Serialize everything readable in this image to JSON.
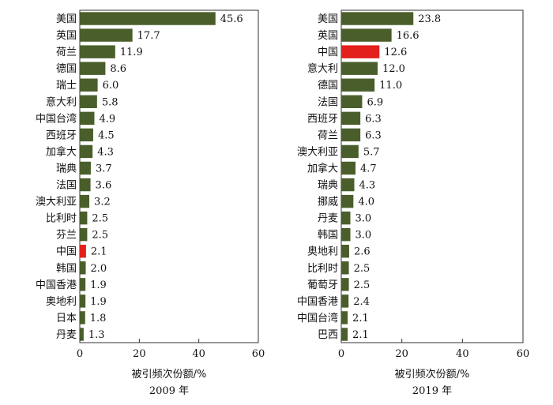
{
  "chart_data": [
    {
      "type": "bar",
      "orientation": "horizontal",
      "categories": [
        "美国",
        "英国",
        "荷兰",
        "德国",
        "瑞士",
        "意大利",
        "中国台湾",
        "西班牙",
        "加拿大",
        "瑞典",
        "法国",
        "澳大利亚",
        "比利时",
        "芬兰",
        "中国",
        "韩国",
        "中国香港",
        "奥地利",
        "日本",
        "丹麦"
      ],
      "values": [
        45.6,
        17.7,
        11.9,
        8.6,
        6.0,
        5.8,
        4.9,
        4.5,
        4.3,
        3.7,
        3.6,
        3.2,
        2.5,
        2.5,
        2.1,
        2.0,
        1.9,
        1.9,
        1.8,
        1.3
      ],
      "value_labels": [
        "45.6",
        "17.7",
        "11.9",
        "8.6",
        "6.0",
        "5.8",
        "4.9",
        "4.5",
        "4.3",
        "3.7",
        "3.6",
        "3.2",
        "2.5",
        "2.5",
        "2.1",
        "2.0",
        "1.9",
        "1.9",
        "1.8",
        "1.3"
      ],
      "highlight": "中国",
      "xlabel": "被引频次份额/%",
      "year_label": "2009 年",
      "xlim": [
        0,
        60
      ],
      "xticks": [
        "0",
        "20",
        "40",
        "60"
      ],
      "grid": false
    },
    {
      "type": "bar",
      "orientation": "horizontal",
      "categories": [
        "美国",
        "英国",
        "中国",
        "意大利",
        "德国",
        "法国",
        "西班牙",
        "荷兰",
        "澳大利亚",
        "加拿大",
        "瑞典",
        "挪威",
        "丹麦",
        "韩国",
        "奥地利",
        "比利时",
        "葡萄牙",
        "中国香港",
        "中国台湾",
        "巴西"
      ],
      "values": [
        23.8,
        16.6,
        12.6,
        12.0,
        11.0,
        6.9,
        6.3,
        6.3,
        5.7,
        4.7,
        4.3,
        4.0,
        3.0,
        3.0,
        2.6,
        2.5,
        2.5,
        2.4,
        2.1,
        2.1
      ],
      "value_labels": [
        "23.8",
        "16.6",
        "12.6",
        "12.0",
        "11.0",
        "6.9",
        "6.3",
        "6.3",
        "5.7",
        "4.7",
        "4.3",
        "4.0",
        "3.0",
        "3.0",
        "2.6",
        "2.5",
        "2.5",
        "2.4",
        "2.1",
        "2.1"
      ],
      "highlight": "中国",
      "xlabel": "被引频次份额/%",
      "year_label": "2019 年",
      "xlim": [
        0,
        60
      ],
      "xticks": [
        "0",
        "20",
        "40",
        "60"
      ],
      "grid": false
    }
  ],
  "colors": {
    "bar": "#4a5e2c",
    "highlight": "#e3201c",
    "axis": "#333333",
    "text": "#111111"
  }
}
